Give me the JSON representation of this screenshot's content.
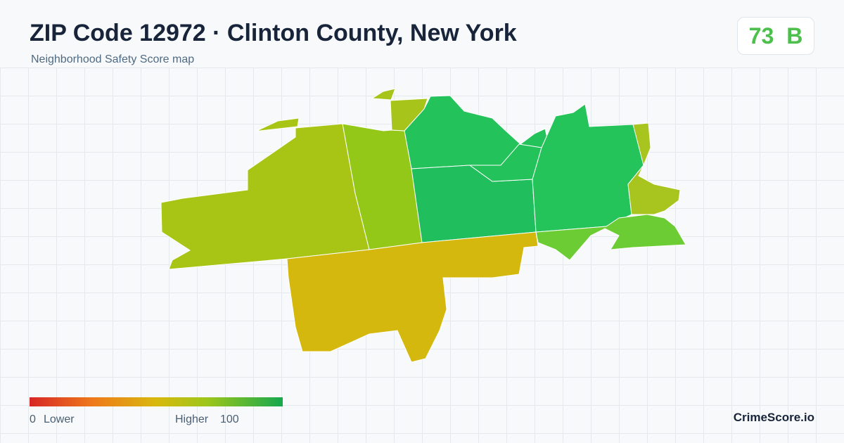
{
  "header": {
    "title": "ZIP Code 12972 · Clinton County, New York",
    "subtitle": "Neighborhood Safety Score map"
  },
  "score": {
    "value": 73,
    "grade": "B"
  },
  "legend": {
    "min": 0,
    "min_label": "Lower",
    "max_label": "Higher",
    "max": 100
  },
  "brand": "CrimeScore.io"
}
